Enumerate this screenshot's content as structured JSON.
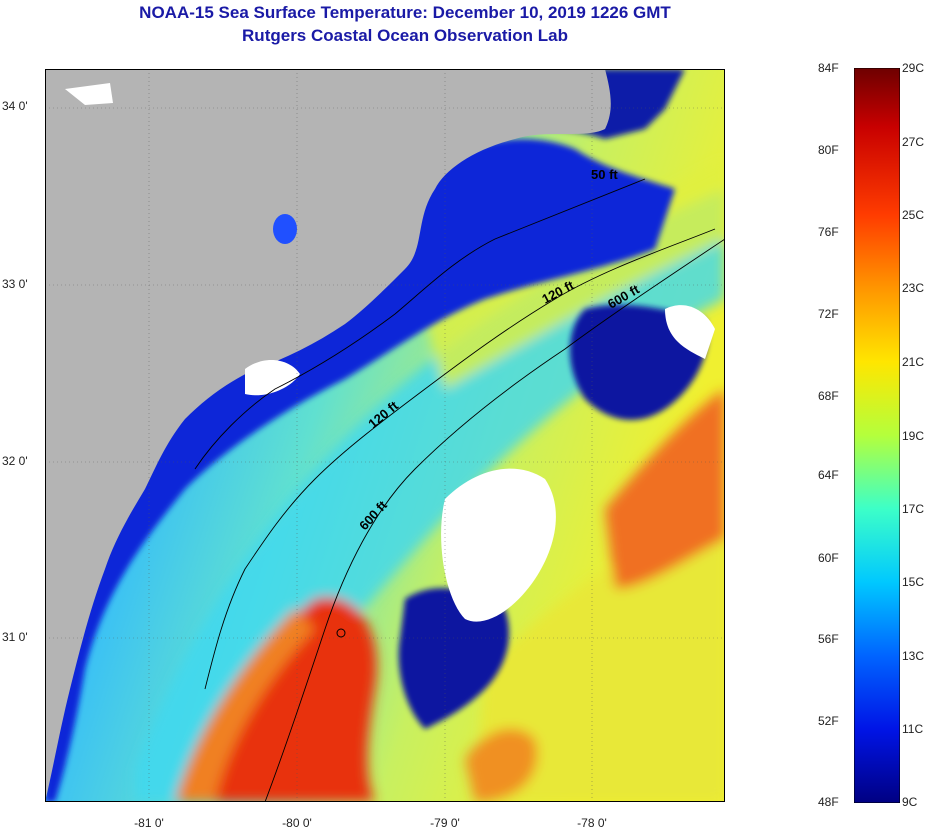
{
  "title": {
    "line1": "NOAA-15 Sea Surface Temperature:  December 10, 2019 1226 GMT",
    "line2": "Rutgers Coastal Ocean Observation Lab"
  },
  "axes": {
    "latitude_labels": [
      "34 0'",
      "33 0'",
      "32 0'",
      "31 0'"
    ],
    "longitude_labels": [
      "-81 0'",
      "-80 0'",
      "-79 0'",
      "-78 0'"
    ]
  },
  "contours": {
    "c50": "50 ft",
    "c120a": "120 ft",
    "c120b": "120 ft",
    "c600a": "600 ft",
    "c600b": "600 ft"
  },
  "colorbar": {
    "fahrenheit": [
      "84F",
      "80F",
      "76F",
      "72F",
      "68F",
      "64F",
      "60F",
      "56F",
      "52F",
      "48F"
    ],
    "celsius": [
      "29C",
      "27C",
      "25C",
      "23C",
      "21C",
      "19C",
      "17C",
      "15C",
      "13C",
      "11C",
      "9C"
    ]
  },
  "colors": {
    "land": "#b4b4b4",
    "cloud": "#ffffff",
    "title": "#1a1aa6"
  }
}
